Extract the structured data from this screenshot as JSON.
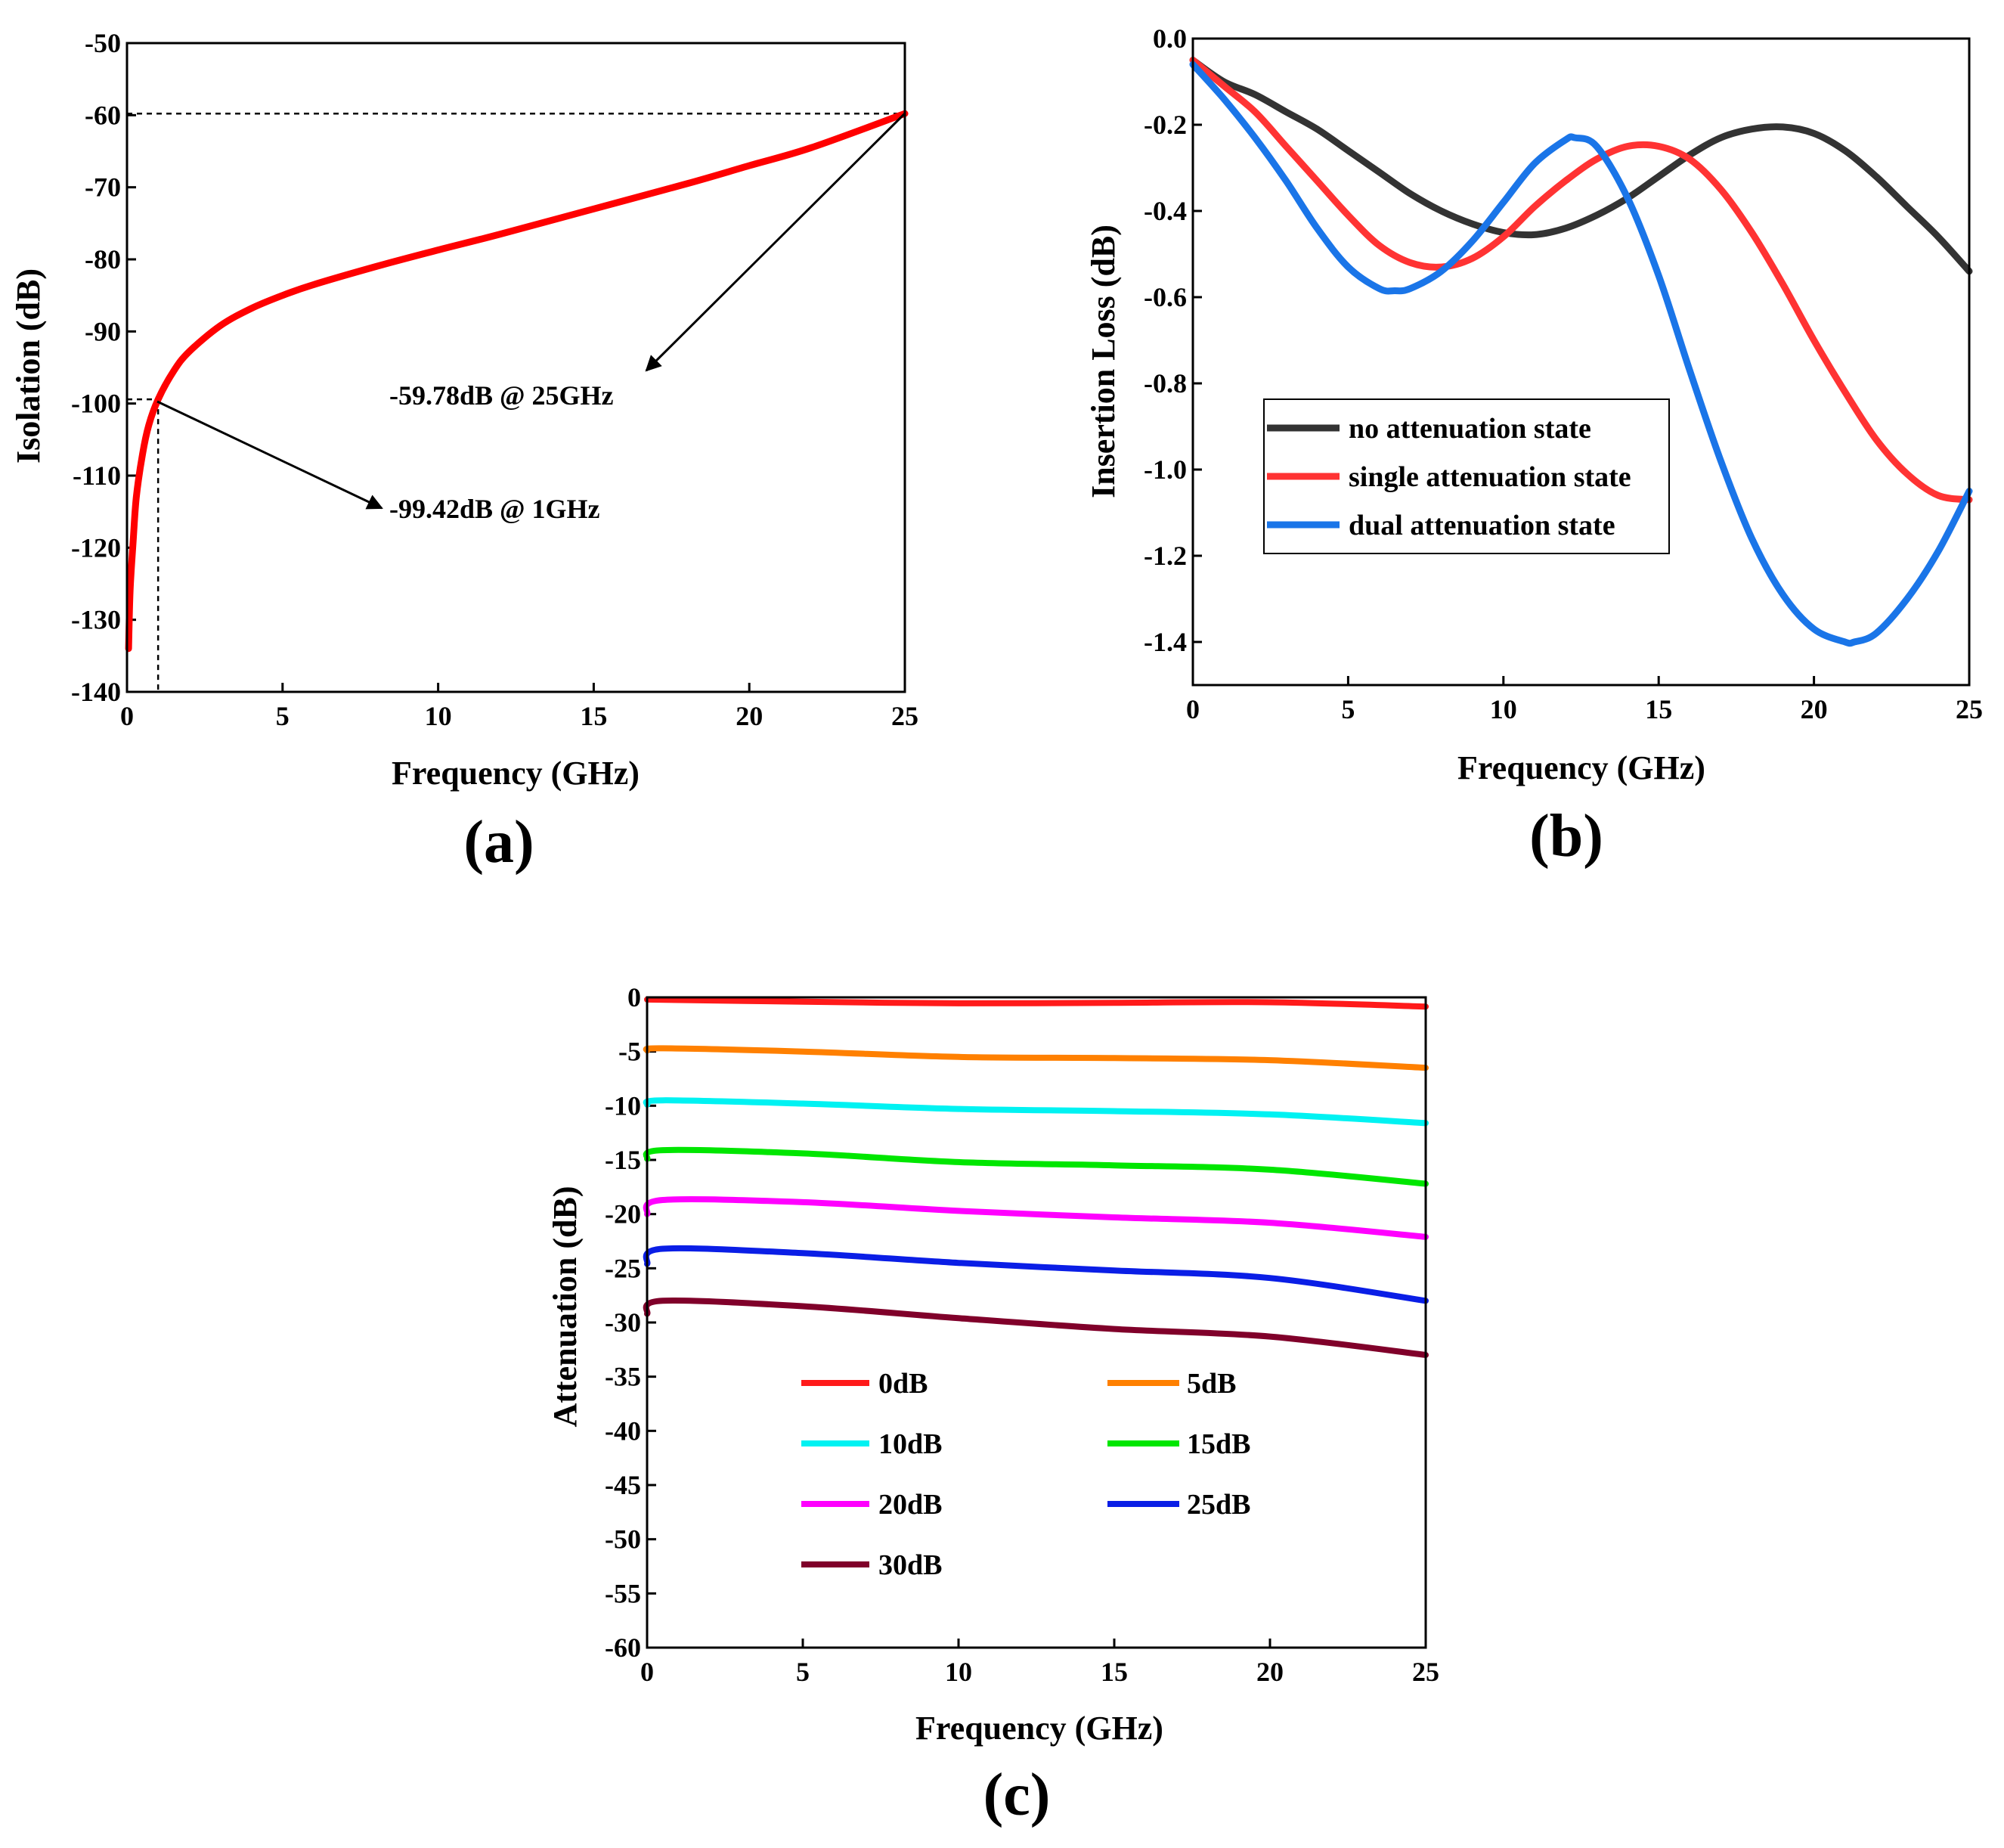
{
  "chart_data": [
    {
      "id": "a",
      "type": "line",
      "panel_label": "(a)",
      "xlabel": "Frequency (GHz)",
      "ylabel": "Isolation (dB)",
      "xlim": [
        0,
        25
      ],
      "ylim": [
        -140,
        -50
      ],
      "xticks": [
        0,
        5,
        10,
        15,
        20,
        25
      ],
      "yticks": [
        -140,
        -130,
        -120,
        -110,
        -100,
        -90,
        -80,
        -70,
        -60,
        -50
      ],
      "series": [
        {
          "name": "Isolation",
          "color": "#ff0000",
          "x": [
            0.05,
            0.1,
            0.2,
            0.3,
            0.5,
            0.7,
            1,
            1.5,
            2,
            3,
            4,
            5,
            6,
            8,
            10,
            12,
            15,
            18,
            20,
            22,
            25
          ],
          "y": [
            -134,
            -126,
            -119,
            -113,
            -107,
            -103,
            -99.42,
            -95.5,
            -92.8,
            -89.2,
            -86.8,
            -85,
            -83.5,
            -81,
            -78.7,
            -76.5,
            -73,
            -69.5,
            -67,
            -64.5,
            -59.78
          ]
        }
      ],
      "annotations": [
        {
          "text": "-59.78dB @ 25GHz",
          "point": [
            25,
            -59.78
          ]
        },
        {
          "text": "-99.42dB @  1GHz",
          "point": [
            1,
            -99.42
          ]
        }
      ],
      "reference_lines": {
        "h": -59.78,
        "h2": -99.42,
        "v": 1
      }
    },
    {
      "id": "b",
      "type": "line",
      "panel_label": "(b)",
      "xlabel": "Frequency (GHz)",
      "ylabel": "Insertion Loss (dB)",
      "xlim": [
        0,
        25
      ],
      "ylim": [
        -1.5,
        0.0
      ],
      "xticks": [
        0,
        5,
        10,
        15,
        20,
        25
      ],
      "yticks": [
        0.0,
        -0.2,
        -0.4,
        -0.6,
        -0.8,
        -1.0,
        -1.2,
        -1.4
      ],
      "ytick_labels": [
        "0.0",
        "-0.2",
        "-0.4",
        "-0.6",
        "-0.8",
        "-1.0",
        "-1.2",
        "-1.4"
      ],
      "legend": "center-left",
      "series": [
        {
          "name": "no attenuation state",
          "color": "#333333",
          "x": [
            0,
            1,
            2,
            3,
            4,
            5,
            6,
            7,
            8,
            9,
            10,
            11,
            12,
            13,
            14,
            15,
            16,
            17,
            18,
            19,
            20,
            21,
            22,
            23,
            24,
            25
          ],
          "y": [
            -0.05,
            -0.1,
            -0.13,
            -0.17,
            -0.21,
            -0.26,
            -0.31,
            -0.36,
            -0.4,
            -0.43,
            -0.45,
            -0.455,
            -0.44,
            -0.41,
            -0.37,
            -0.32,
            -0.27,
            -0.23,
            -0.21,
            -0.205,
            -0.22,
            -0.26,
            -0.32,
            -0.39,
            -0.46,
            -0.54
          ]
        },
        {
          "name": "single attenuation state",
          "color": "#ff3333",
          "x": [
            0,
            1,
            2,
            3,
            4,
            5,
            6,
            7,
            8,
            9,
            10,
            11,
            12,
            13,
            14,
            15,
            16,
            17,
            18,
            19,
            20,
            21,
            22,
            23,
            24,
            25
          ],
          "y": [
            -0.05,
            -0.11,
            -0.17,
            -0.25,
            -0.33,
            -0.41,
            -0.48,
            -0.52,
            -0.53,
            -0.51,
            -0.46,
            -0.39,
            -0.33,
            -0.28,
            -0.25,
            -0.25,
            -0.28,
            -0.35,
            -0.45,
            -0.57,
            -0.7,
            -0.82,
            -0.93,
            -1.01,
            -1.06,
            -1.07
          ]
        },
        {
          "name": "dual attenuation state",
          "color": "#1a75e8",
          "x": [
            0,
            1,
            2,
            3,
            4,
            5,
            6,
            6.5,
            7,
            8,
            9,
            10,
            11,
            12,
            12.3,
            13,
            14,
            15,
            16,
            17,
            18,
            19,
            20,
            21,
            21.3,
            22,
            23,
            24,
            25
          ],
          "y": [
            -0.06,
            -0.14,
            -0.23,
            -0.33,
            -0.44,
            -0.53,
            -0.58,
            -0.585,
            -0.58,
            -0.54,
            -0.47,
            -0.38,
            -0.29,
            -0.235,
            -0.23,
            -0.25,
            -0.37,
            -0.55,
            -0.77,
            -0.98,
            -1.16,
            -1.29,
            -1.37,
            -1.4,
            -1.4,
            -1.38,
            -1.3,
            -1.19,
            -1.05
          ]
        }
      ]
    },
    {
      "id": "c",
      "type": "line",
      "panel_label": "(c)",
      "xlabel": "Frequency (GHz)",
      "ylabel": "Attenuation (dB)",
      "xlim": [
        0,
        25
      ],
      "ylim": [
        -60,
        0
      ],
      "xticks": [
        0,
        5,
        10,
        15,
        20,
        25
      ],
      "yticks": [
        0,
        -5,
        -10,
        -15,
        -20,
        -25,
        -30,
        -35,
        -40,
        -45,
        -50,
        -55,
        -60
      ],
      "legend": "lower-center",
      "series": [
        {
          "name": "0dB",
          "color": "#ff1a1a",
          "x": [
            0,
            5,
            10,
            15,
            20,
            25
          ],
          "y": [
            -0.2,
            -0.4,
            -0.55,
            -0.5,
            -0.45,
            -0.85
          ]
        },
        {
          "name": "5dB",
          "color": "#ff8000",
          "x": [
            0,
            0.5,
            5,
            10,
            15,
            20,
            25
          ],
          "y": [
            -4.9,
            -4.7,
            -5.0,
            -5.5,
            -5.6,
            -5.8,
            -6.5
          ]
        },
        {
          "name": "10dB",
          "color": "#00f2f2",
          "x": [
            0,
            0.5,
            5,
            10,
            15,
            20,
            25
          ],
          "y": [
            -9.9,
            -9.5,
            -9.8,
            -10.3,
            -10.5,
            -10.8,
            -11.6
          ]
        },
        {
          "name": "15dB",
          "color": "#00e600",
          "x": [
            0,
            0.5,
            5,
            10,
            15,
            20,
            25
          ],
          "y": [
            -14.9,
            -14.1,
            -14.4,
            -15.2,
            -15.5,
            -15.9,
            -17.2
          ]
        },
        {
          "name": "20dB",
          "color": "#ff00ff",
          "x": [
            0,
            0.5,
            5,
            10,
            15,
            20,
            25
          ],
          "y": [
            -20.0,
            -18.7,
            -18.9,
            -19.7,
            -20.3,
            -20.8,
            -22.1
          ]
        },
        {
          "name": "25dB",
          "color": "#0a1ee6",
          "x": [
            0,
            0.5,
            5,
            10,
            15,
            20,
            25
          ],
          "y": [
            -24.6,
            -23.2,
            -23.6,
            -24.5,
            -25.2,
            -25.9,
            -28.0
          ]
        },
        {
          "name": "30dB",
          "color": "#80002a",
          "x": [
            0,
            0.5,
            5,
            10,
            15,
            20,
            25
          ],
          "y": [
            -29.2,
            -28.0,
            -28.5,
            -29.6,
            -30.6,
            -31.3,
            -33.0
          ]
        }
      ]
    }
  ]
}
